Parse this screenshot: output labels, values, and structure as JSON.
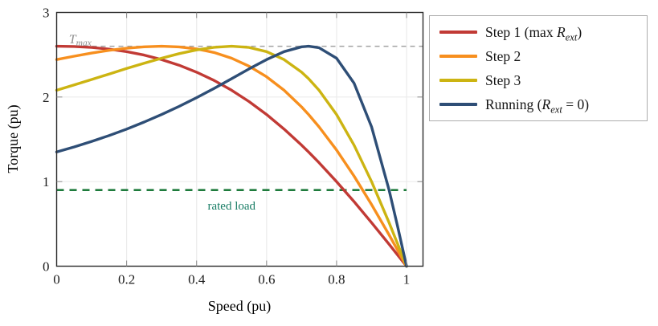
{
  "chart_data": {
    "type": "line",
    "title": "",
    "xlabel": "Speed (pu)",
    "ylabel": "Torque (pu)",
    "xlim": [
      0,
      1.047
    ],
    "ylim": [
      0,
      3
    ],
    "xticks": [
      0,
      0.2,
      0.4,
      0.6,
      0.8,
      1
    ],
    "xtick_labels": [
      "0",
      "0.2",
      "0.4",
      "0.6",
      "0.8",
      "1"
    ],
    "yticks": [
      0,
      1,
      2,
      3
    ],
    "ytick_labels": [
      "0",
      "1",
      "2",
      "3"
    ],
    "grid": true,
    "legend_position": "outside-right",
    "x": [
      0,
      0.05,
      0.1,
      0.15,
      0.2,
      0.25,
      0.3,
      0.35,
      0.4,
      0.45,
      0.5,
      0.55,
      0.6,
      0.65,
      0.7,
      0.72,
      0.75,
      0.8,
      0.85,
      0.9,
      0.95,
      0.975,
      1
    ],
    "series": [
      {
        "slug": "step-1",
        "pre": "Step 1 (max ",
        "math": "R",
        "sub": "ext",
        "post": ")",
        "color": "#c13a35",
        "values": [
          2.6,
          2.597,
          2.586,
          2.566,
          2.537,
          2.496,
          2.443,
          2.376,
          2.294,
          2.196,
          2.08,
          1.946,
          1.793,
          1.621,
          1.431,
          1.35,
          1.224,
          1.0,
          0.763,
          0.515,
          0.259,
          0.13,
          0.0
        ]
      },
      {
        "slug": "step-2",
        "pre": "Step 2",
        "math": "",
        "sub": "",
        "post": "",
        "color": "#f78f1e",
        "values": [
          2.443,
          2.483,
          2.52,
          2.552,
          2.577,
          2.594,
          2.6,
          2.593,
          2.569,
          2.526,
          2.459,
          2.365,
          2.24,
          2.08,
          1.883,
          1.793,
          1.647,
          1.374,
          1.065,
          0.728,
          0.37,
          0.186,
          0.0
        ]
      },
      {
        "slug": "step-3",
        "pre": "Step 3",
        "math": "",
        "sub": "",
        "post": "",
        "color": "#ccb412",
        "values": [
          2.08,
          2.143,
          2.207,
          2.272,
          2.337,
          2.4,
          2.459,
          2.513,
          2.557,
          2.588,
          2.6,
          2.586,
          2.537,
          2.443,
          2.294,
          2.217,
          2.08,
          1.793,
          1.431,
          1.0,
          0.515,
          0.259,
          0.0
        ]
      },
      {
        "slug": "running",
        "pre": "Running (",
        "math": "R",
        "sub": "ext",
        "post": " = 0)",
        "color": "#2e4e76",
        "values": [
          1.35,
          1.41,
          1.475,
          1.545,
          1.621,
          1.704,
          1.793,
          1.889,
          1.993,
          2.102,
          2.217,
          2.333,
          2.443,
          2.537,
          2.594,
          2.6,
          2.583,
          2.459,
          2.164,
          1.647,
          0.9,
          0.461,
          0.0
        ]
      }
    ],
    "annotations": [
      {
        "slug": "t-max-line",
        "kind": "hline",
        "y": 2.6,
        "x0": 0,
        "x1": 1.047,
        "color": "#a3a3a3",
        "dash": "6 5",
        "width": 1.5,
        "label": {
          "pre": "",
          "math": "T",
          "sub": "max",
          "post": "",
          "x": 0.035,
          "y": 2.635,
          "anchor": "start",
          "italic": true,
          "size": 16,
          "color": "#8f8f8f"
        }
      },
      {
        "slug": "rated-load-line",
        "kind": "hline",
        "y": 0.9,
        "x0": 0,
        "x1": 1.0,
        "color": "#1e7b3c",
        "dash": "9 7",
        "width": 2.7,
        "label": {
          "pre": "rated load",
          "math": "",
          "sub": "",
          "post": "",
          "x": 0.5,
          "y": 0.67,
          "anchor": "middle",
          "italic": false,
          "size": 15,
          "color": "#177c64"
        }
      }
    ],
    "axis_color": "#2b2b2b",
    "grid_color": "#ebebeb",
    "tick_color": "#8a8a8a",
    "text_color": "#1c1c1c"
  }
}
